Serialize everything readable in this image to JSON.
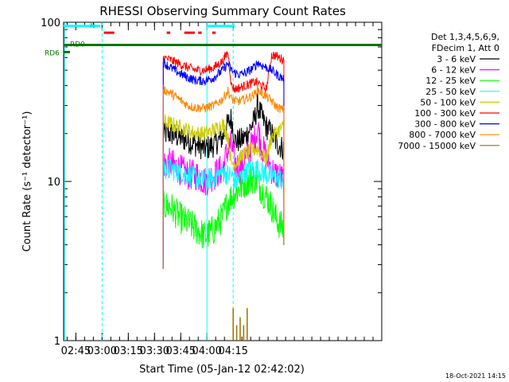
{
  "chart_data": {
    "type": "line",
    "title": "RHESSI Observing Summary Count Rates",
    "xlabel": "Start Time (05-Jan-12 02:42:02)",
    "ylabel": "Count Rate (s⁻¹ detector⁻¹)",
    "y_scale": "log",
    "ylim": [
      1,
      100
    ],
    "xlim_minutes": [
      -1,
      181
    ],
    "x_ticks": [
      {
        "label": "02:45",
        "minute": 6
      },
      {
        "label": "03:00",
        "minute": 21
      },
      {
        "label": "03:15",
        "minute": 36
      },
      {
        "label": "03:30",
        "minute": 51
      },
      {
        "label": "03:45",
        "minute": 66
      },
      {
        "label": "04:00",
        "minute": 81
      },
      {
        "label": "04:15",
        "minute": 96
      }
    ],
    "y_ticks": [
      {
        "label": "1",
        "value": 1
      },
      {
        "label": "10",
        "value": 10
      },
      {
        "label": "100",
        "value": 100
      }
    ],
    "legend": {
      "header": [
        "Det 1,3,4,5,6,9,",
        "FDecim 1, Att 0"
      ],
      "position": "right"
    },
    "data_window_minutes": [
      56,
      125
    ],
    "series": [
      {
        "name": "3 - 6 keV",
        "color": "#000000",
        "baseline": 15,
        "peak": 25,
        "noise": 0.08,
        "points": [
          [
            56,
            20
          ],
          [
            60,
            20
          ],
          [
            65,
            19
          ],
          [
            70,
            18
          ],
          [
            75,
            17
          ],
          [
            80,
            16
          ],
          [
            85,
            17
          ],
          [
            90,
            19
          ],
          [
            93,
            23
          ],
          [
            95,
            25
          ],
          [
            97,
            18
          ],
          [
            100,
            18
          ],
          [
            103,
            19
          ],
          [
            108,
            24
          ],
          [
            110,
            30
          ],
          [
            112,
            26
          ],
          [
            115,
            22
          ],
          [
            118,
            20
          ],
          [
            120,
            18
          ],
          [
            122,
            17
          ],
          [
            125,
            16
          ]
        ]
      },
      {
        "name": "6 - 12 keV",
        "color": "#ff00ff",
        "baseline": 11,
        "peak": 20,
        "noise": 0.1,
        "points": [
          [
            56,
            13
          ],
          [
            60,
            13
          ],
          [
            65,
            12
          ],
          [
            70,
            11
          ],
          [
            75,
            11
          ],
          [
            80,
            10
          ],
          [
            85,
            11
          ],
          [
            90,
            12
          ],
          [
            93,
            16
          ],
          [
            95,
            17
          ],
          [
            97,
            13
          ],
          [
            100,
            12
          ],
          [
            103,
            14
          ],
          [
            108,
            18
          ],
          [
            110,
            22
          ],
          [
            112,
            17
          ],
          [
            115,
            14
          ],
          [
            118,
            12
          ],
          [
            120,
            11
          ],
          [
            122,
            11
          ],
          [
            125,
            10
          ]
        ]
      },
      {
        "name": "12 - 25 keV",
        "color": "#00ff00",
        "baseline": 6,
        "peak": 11,
        "noise": 0.1,
        "points": [
          [
            56,
            7
          ],
          [
            60,
            7
          ],
          [
            65,
            6
          ],
          [
            70,
            5.5
          ],
          [
            75,
            5
          ],
          [
            80,
            4.5
          ],
          [
            85,
            5
          ],
          [
            90,
            6
          ],
          [
            93,
            7.5
          ],
          [
            95,
            8
          ],
          [
            97,
            8.5
          ],
          [
            100,
            9
          ],
          [
            103,
            10
          ],
          [
            108,
            10.5
          ],
          [
            110,
            10
          ],
          [
            112,
            9
          ],
          [
            115,
            8
          ],
          [
            118,
            7
          ],
          [
            120,
            6
          ],
          [
            122,
            5.5
          ],
          [
            125,
            5
          ]
        ]
      },
      {
        "name": "25 - 50 keV",
        "color": "#00ffff",
        "baseline": 12,
        "peak": 12,
        "noise": 0.07,
        "points": [
          [
            56,
            12
          ],
          [
            60,
            12
          ],
          [
            65,
            11.5
          ],
          [
            70,
            11
          ],
          [
            75,
            10.5
          ],
          [
            80,
            10
          ],
          [
            85,
            10.5
          ],
          [
            90,
            11.5
          ],
          [
            93,
            11
          ],
          [
            95,
            11
          ],
          [
            97,
            10
          ],
          [
            100,
            10.5
          ],
          [
            103,
            11.5
          ],
          [
            108,
            12
          ],
          [
            110,
            12
          ],
          [
            112,
            11.5
          ],
          [
            115,
            11
          ],
          [
            118,
            11
          ],
          [
            120,
            10.5
          ],
          [
            122,
            10.5
          ],
          [
            125,
            10
          ]
        ]
      },
      {
        "name": "50 - 100 keV",
        "color": "#cccc00",
        "baseline": 17,
        "peak": 25,
        "noise": 0.05,
        "points": [
          [
            56,
            24
          ],
          [
            60,
            23
          ],
          [
            65,
            22
          ],
          [
            70,
            21
          ],
          [
            75,
            20
          ],
          [
            80,
            20
          ],
          [
            85,
            21
          ],
          [
            90,
            23
          ],
          [
            93,
            19
          ],
          [
            95,
            13
          ],
          [
            97,
            13
          ],
          [
            100,
            14
          ],
          [
            103,
            15
          ],
          [
            108,
            16
          ],
          [
            110,
            16
          ],
          [
            112,
            15
          ],
          [
            115,
            14
          ],
          [
            118,
            19
          ],
          [
            120,
            20
          ],
          [
            122,
            21
          ],
          [
            125,
            22
          ]
        ]
      },
      {
        "name": "100 - 300 keV",
        "color": "#ff0000",
        "baseline": 42,
        "peak": 42,
        "noise": 0.03,
        "points": [
          [
            56,
            60
          ],
          [
            60,
            58
          ],
          [
            65,
            55
          ],
          [
            70,
            52
          ],
          [
            75,
            50
          ],
          [
            80,
            50
          ],
          [
            85,
            52
          ],
          [
            90,
            57
          ],
          [
            93,
            65
          ],
          [
            95,
            40
          ],
          [
            97,
            38
          ],
          [
            100,
            39
          ],
          [
            103,
            40
          ],
          [
            108,
            42
          ],
          [
            110,
            42
          ],
          [
            112,
            40
          ],
          [
            115,
            38
          ],
          [
            118,
            62
          ],
          [
            120,
            62
          ],
          [
            122,
            60
          ],
          [
            125,
            58
          ]
        ]
      },
      {
        "name": "300 - 800 keV",
        "color": "#0000ff",
        "baseline": 50,
        "peak": 50,
        "noise": 0.03,
        "points": [
          [
            56,
            56
          ],
          [
            60,
            52
          ],
          [
            65,
            48
          ],
          [
            70,
            45
          ],
          [
            75,
            43
          ],
          [
            80,
            43
          ],
          [
            85,
            45
          ],
          [
            90,
            50
          ],
          [
            93,
            55
          ],
          [
            95,
            50
          ],
          [
            97,
            48
          ],
          [
            100,
            47
          ],
          [
            103,
            48
          ],
          [
            108,
            52
          ],
          [
            110,
            56
          ],
          [
            112,
            54
          ],
          [
            115,
            52
          ],
          [
            118,
            50
          ],
          [
            120,
            48
          ],
          [
            122,
            46
          ],
          [
            125,
            44
          ]
        ]
      },
      {
        "name": "800 - 7000 keV",
        "color": "#ff8800",
        "baseline": 30,
        "peak": 35,
        "noise": 0.03,
        "points": [
          [
            56,
            38
          ],
          [
            60,
            36
          ],
          [
            65,
            33
          ],
          [
            70,
            30
          ],
          [
            75,
            29
          ],
          [
            80,
            29
          ],
          [
            85,
            30
          ],
          [
            90,
            33
          ],
          [
            93,
            37
          ],
          [
            95,
            33
          ],
          [
            97,
            32
          ],
          [
            100,
            32
          ],
          [
            103,
            33
          ],
          [
            108,
            35
          ],
          [
            110,
            38
          ],
          [
            112,
            36
          ],
          [
            115,
            34
          ],
          [
            118,
            32
          ],
          [
            120,
            30
          ],
          [
            122,
            29
          ],
          [
            125,
            28
          ]
        ]
      },
      {
        "name": "7000 - 15000 keV",
        "color": "#a07000",
        "baseline": 0,
        "peak": 1.6,
        "noise": 0,
        "points": [
          [
            96,
            1.6
          ],
          [
            100,
            1.4
          ],
          [
            104,
            1.6
          ]
        ]
      }
    ],
    "annotations": [
      {
        "label": "RD6",
        "color": "#007700",
        "value": 65
      },
      {
        "label": "RD0",
        "color": "#007700",
        "value": 72
      },
      {
        "label": "N",
        "color": "#00cccc",
        "value": 95
      }
    ],
    "footer_date": "18-Oct-2021 14:15"
  }
}
